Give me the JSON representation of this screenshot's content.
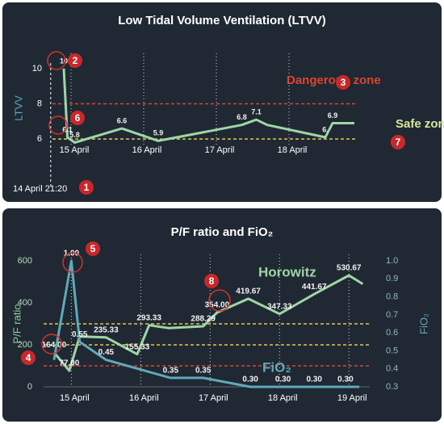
{
  "chart_data": [
    {
      "type": "line",
      "title": "Low Tidal Volume Ventilation (LTVV)",
      "y_label": "LTVV",
      "x": [
        14.9,
        14.95,
        15.05,
        15.7,
        16.2,
        17.35,
        17.55,
        17.7,
        18.5,
        18.6,
        18.9
      ],
      "values": [
        10,
        6.1,
        5.8,
        6.6,
        5.9,
        6.8,
        7.1,
        6.8,
        6.1,
        6.9,
        6.9
      ],
      "value_labels": [
        "10",
        "6.1",
        "5.8",
        "6.6",
        "5.9",
        "6.8",
        "7.1",
        null,
        "6.",
        "6.9",
        null
      ],
      "color": "#9fd6a8",
      "xlim": [
        14.7,
        19.2
      ],
      "xticks": [
        {
          "value": 15,
          "label": "15 April"
        },
        {
          "value": 16,
          "label": "16 April"
        },
        {
          "value": 17,
          "label": "17 April"
        },
        {
          "value": 18,
          "label": "18 April"
        }
      ],
      "ylim": [
        5,
        10.5
      ],
      "yticks": [
        6,
        8,
        10
      ],
      "start_x": 14.72,
      "start_label": "14 April 21:20",
      "reference_lines": [
        {
          "value": 8,
          "color": "#d9452f",
          "label": "Dangerous zone"
        },
        {
          "value": 6,
          "color": "#e2c94b",
          "label": "Safe zone"
        }
      ],
      "markers": [
        "1",
        "2",
        "3",
        "6",
        "7"
      ]
    },
    {
      "type": "line",
      "title": "P/F ratio and FiO₂",
      "y_label": "P/F ratio",
      "y2_label": "FiO₂",
      "xlim": [
        14.6,
        19.3
      ],
      "xticks": [
        {
          "value": 15,
          "label": "15 April"
        },
        {
          "value": 16,
          "label": "16 April"
        },
        {
          "value": 17,
          "label": "17 April"
        },
        {
          "value": 18,
          "label": "18 April"
        },
        {
          "value": 19,
          "label": "19 April"
        }
      ],
      "ylim": [
        0,
        600
      ],
      "yticks": [
        0,
        200,
        400,
        600
      ],
      "y2lim": [
        0.3,
        1.0
      ],
      "y2ticks": [
        0.3,
        0.4,
        0.5,
        0.6,
        0.7,
        0.8,
        0.9,
        {
          "value": 1,
          "label": "1.0"
        }
      ],
      "reference_lines": [
        {
          "value": 300,
          "color": "#e2c94b"
        },
        {
          "value": 200,
          "color": "#e2c94b"
        },
        {
          "value": 100,
          "color": "#d9452f"
        }
      ],
      "series": [
        {
          "name": "Horowitz",
          "color": "#9fd6a8",
          "x": [
            14.75,
            14.97,
            15.12,
            15.5,
            15.95,
            16.12,
            16.4,
            16.9,
            17.1,
            17.55,
            18.0,
            18.5,
            19.0,
            19.2
          ],
          "values": [
            164,
            77,
            240,
            235.33,
            155.33,
            293.33,
            280,
            288.29,
            354,
            419.67,
            347.33,
            441.67,
            530.67,
            490
          ],
          "value_labels": [
            "164.00",
            "77.00",
            null,
            "235.33",
            "155.33",
            "293.33",
            null,
            "288.29",
            "354.00",
            "419.67",
            "347.33",
            "441.67",
            "530.67",
            null
          ]
        },
        {
          "name": "FiO₂",
          "color": "#5fa9b9",
          "axis": "y2",
          "x": [
            14.75,
            15.0,
            15.12,
            15.5,
            16.43,
            16.9,
            17.58,
            18.05,
            18.5,
            18.95,
            19.15
          ],
          "values": [
            0.45,
            1.0,
            0.55,
            0.45,
            0.35,
            0.35,
            0.3,
            0.3,
            0.3,
            0.3,
            0.3
          ],
          "value_labels": [
            null,
            "1.00",
            "0.55",
            "0.45",
            "0.35",
            "0.35",
            "0.30",
            "0.30",
            "0.30",
            "0.30",
            null
          ]
        }
      ],
      "markers": [
        "4",
        "5",
        "8"
      ]
    }
  ]
}
